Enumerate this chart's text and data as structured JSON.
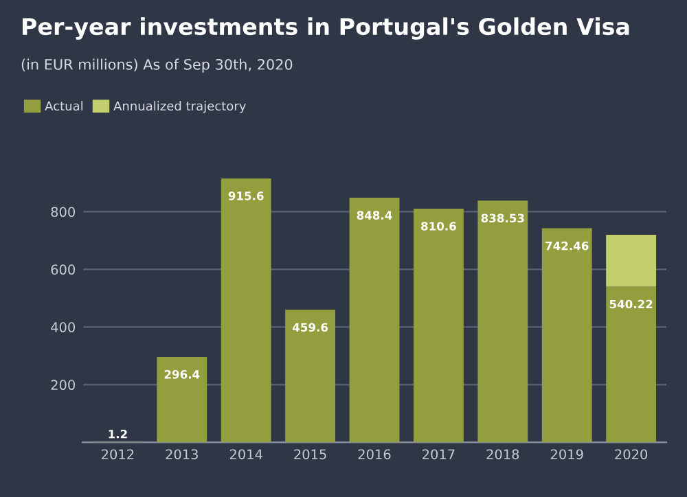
{
  "chart_data": {
    "type": "bar",
    "title": "Per-year investments in Portugal's Golden Visa",
    "subtitle": "(in EUR millions) As of Sep 30th, 2020",
    "categories": [
      "2012",
      "2013",
      "2014",
      "2015",
      "2016",
      "2017",
      "2018",
      "2019",
      "2020"
    ],
    "stacked": true,
    "series": [
      {
        "name": "Actual",
        "color": "#939f3e",
        "values": [
          1.2,
          296.4,
          915.6,
          459.6,
          848.4,
          810.6,
          838.53,
          742.46,
          540.22
        ],
        "value_labels": [
          "1.2",
          "296.4",
          "915.6",
          "459.6",
          "848.4",
          "810.6",
          "838.53",
          "742.46",
          "540.22"
        ]
      },
      {
        "name": "Annualized trajectory",
        "color": "#c3cf6c",
        "values": [
          null,
          null,
          null,
          null,
          null,
          null,
          null,
          null,
          180
        ]
      }
    ],
    "ylim": [
      0,
      1000
    ],
    "yticks": [
      {
        "value": 0,
        "label": null
      },
      200,
      400,
      600,
      800
    ],
    "grid": "y",
    "legend": "top left"
  }
}
